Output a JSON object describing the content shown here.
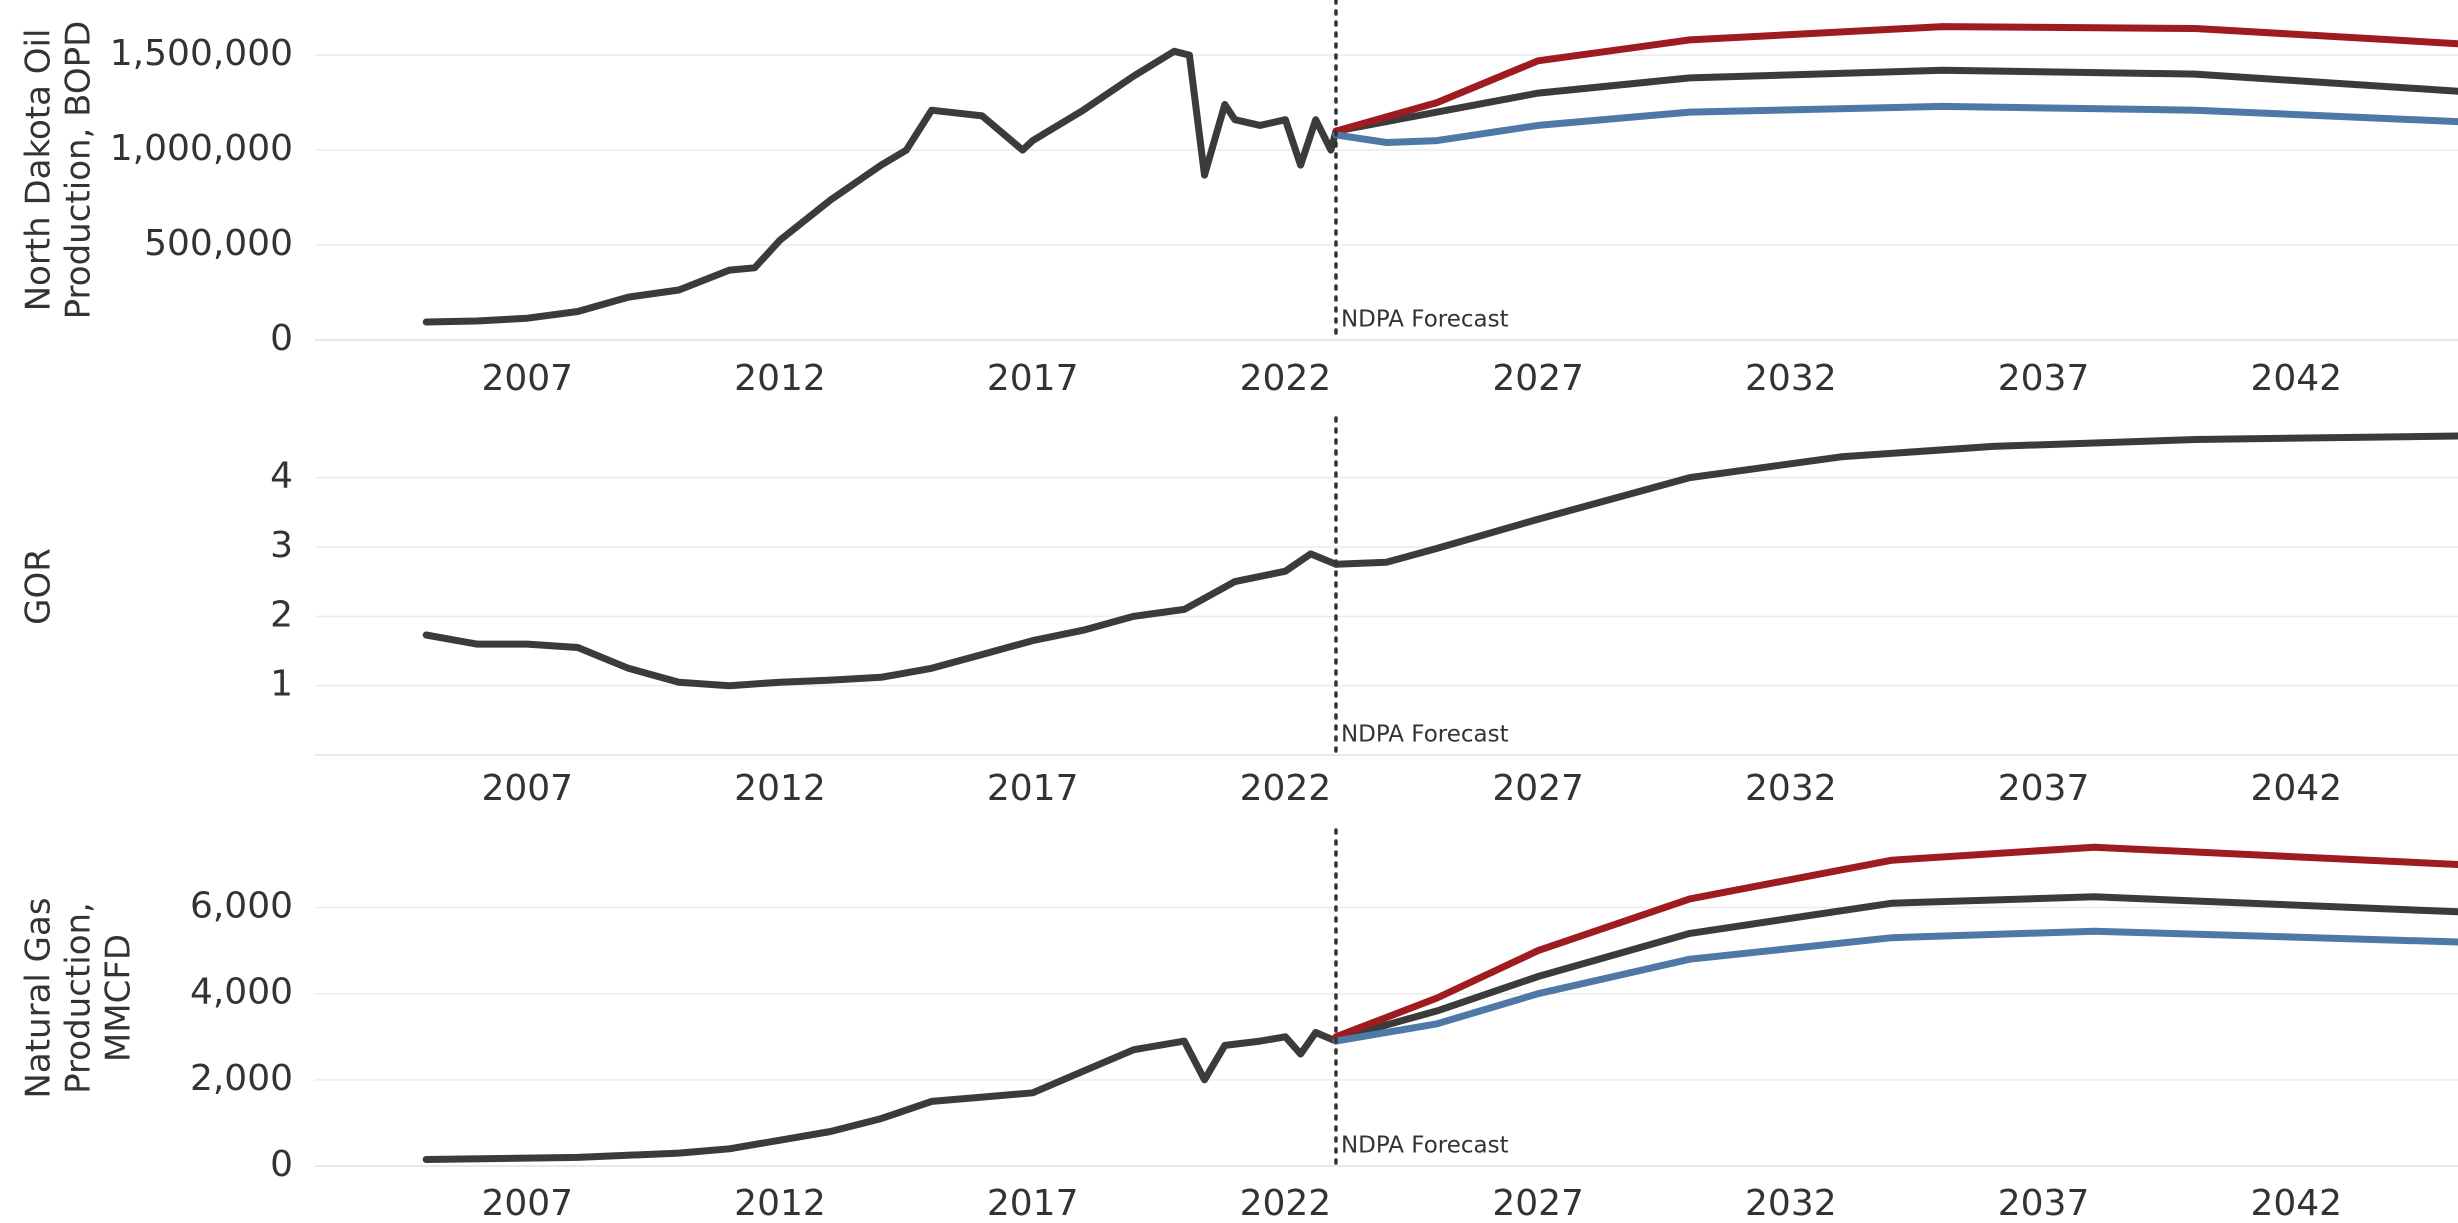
{
  "chart_data": [
    {
      "type": "line",
      "ylabel": [
        "North Dakota Oil",
        "Production, BOPD"
      ],
      "xlim": [
        2002.8,
        2045.2
      ],
      "xticks": [
        2007,
        2012,
        2017,
        2022,
        2027,
        2032,
        2037,
        2042
      ],
      "ylim": [
        0,
        1790000
      ],
      "yticks": [
        0,
        {
          "value": 500000,
          "label": "500,000"
        },
        {
          "value": 1000000,
          "label": "1,000,000"
        },
        {
          "value": 1500000,
          "label": "1,500,000"
        }
      ],
      "grid": true,
      "annotation": {
        "x": 2023,
        "text": "NDPA Forecast"
      },
      "series": [
        {
          "color": "#3b3b3b",
          "x": [
            2005,
            2006,
            2007,
            2008,
            2009,
            2010,
            2011,
            2011.5,
            2012,
            2013,
            2014,
            2014.5,
            2015,
            2016,
            2016.8,
            2017,
            2018,
            2019,
            2019.8,
            2020.1,
            2020.4,
            2020.8,
            2021,
            2021.5,
            2022,
            2022.3,
            2022.6,
            2022.9,
            2023
          ],
          "values": [
            95000,
            100000,
            115000,
            150000,
            226000,
            263000,
            368000,
            380000,
            526000,
            737000,
            921000,
            1000000,
            1210000,
            1180000,
            1000000,
            1050000,
            1210000,
            1390000,
            1520000,
            1500000,
            868000,
            1240000,
            1160000,
            1130000,
            1160000,
            921000,
            1160000,
            1000000,
            1100000
          ]
        },
        {
          "color": "#3b3b3b",
          "x": [
            2023,
            2025,
            2027,
            2030,
            2035,
            2040,
            2045.2
          ],
          "values": [
            1100000,
            1200000,
            1300000,
            1380000,
            1420000,
            1400000,
            1310000
          ]
        },
        {
          "color": "#9e1b20",
          "x": [
            2023,
            2025,
            2027,
            2030,
            2035,
            2040,
            2045.2
          ],
          "values": [
            1100000,
            1250000,
            1470000,
            1580000,
            1650000,
            1640000,
            1560000
          ]
        },
        {
          "color": "#4e79a7",
          "x": [
            2023,
            2024,
            2025,
            2027,
            2030,
            2035,
            2040,
            2045.2
          ],
          "values": [
            1080000,
            1040000,
            1050000,
            1130000,
            1200000,
            1230000,
            1210000,
            1150000
          ]
        }
      ]
    },
    {
      "type": "line",
      "ylabel": [
        "GOR"
      ],
      "xlim": [
        2002.8,
        2045.2
      ],
      "xticks": [
        2007,
        2012,
        2017,
        2022,
        2027,
        2032,
        2037,
        2042
      ],
      "ylim": [
        0,
        4.86
      ],
      "yticks": [
        1,
        2,
        3,
        4
      ],
      "grid": true,
      "annotation": {
        "x": 2023,
        "text": "NDPA Forecast"
      },
      "series": [
        {
          "color": "#3b3b3b",
          "x": [
            2005,
            2006,
            2007,
            2008,
            2009,
            2010,
            2011,
            2012,
            2013,
            2014,
            2015,
            2016,
            2017,
            2018,
            2019,
            2020,
            2021,
            2022,
            2022.5,
            2023
          ],
          "values": [
            1.73,
            1.6,
            1.6,
            1.55,
            1.25,
            1.05,
            1.0,
            1.05,
            1.08,
            1.12,
            1.25,
            1.45,
            1.65,
            1.8,
            2.0,
            2.1,
            2.5,
            2.65,
            2.9,
            2.75
          ]
        },
        {
          "color": "#3b3b3b",
          "x": [
            2023,
            2024,
            2025,
            2027,
            2030,
            2033,
            2036,
            2040,
            2045.2
          ],
          "values": [
            2.75,
            2.78,
            2.98,
            3.4,
            4.0,
            4.3,
            4.45,
            4.55,
            4.6
          ]
        }
      ]
    },
    {
      "type": "line",
      "ylabel": [
        "Natural Gas",
        "Production,",
        "MMCFD"
      ],
      "xlim": [
        2002.8,
        2045.2
      ],
      "xticks": [
        2007,
        2012,
        2017,
        2022,
        2027,
        2032,
        2037,
        2042
      ],
      "ylim": [
        0,
        7800
      ],
      "yticks": [
        0,
        {
          "value": 2000,
          "label": "2,000"
        },
        {
          "value": 4000,
          "label": "4,000"
        },
        {
          "value": 6000,
          "label": "6,000"
        }
      ],
      "grid": true,
      "annotation": {
        "x": 2023,
        "text": "NDPA Forecast"
      },
      "series": [
        {
          "color": "#3b3b3b",
          "x": [
            2005,
            2008,
            2010,
            2011,
            2012,
            2013,
            2014,
            2015,
            2016,
            2017,
            2018,
            2019,
            2020,
            2020.4,
            2020.8,
            2021.5,
            2022,
            2022.3,
            2022.6,
            2023
          ],
          "values": [
            150,
            200,
            300,
            400,
            600,
            800,
            1100,
            1500,
            1600,
            1700,
            2200,
            2700,
            2900,
            2000,
            2800,
            2900,
            3000,
            2600,
            3100,
            2900
          ]
        },
        {
          "color": "#3b3b3b",
          "x": [
            2023,
            2025,
            2027,
            2030,
            2034,
            2038,
            2045.2
          ],
          "values": [
            2950,
            3600,
            4400,
            5400,
            6100,
            6250,
            5900
          ]
        },
        {
          "color": "#9e1b20",
          "x": [
            2023,
            2025,
            2027,
            2030,
            2034,
            2038,
            2045.2
          ],
          "values": [
            3000,
            3900,
            5000,
            6200,
            7100,
            7400,
            7000
          ]
        },
        {
          "color": "#4e79a7",
          "x": [
            2023,
            2025,
            2027,
            2030,
            2034,
            2038,
            2045.2
          ],
          "values": [
            2900,
            3300,
            4000,
            4800,
            5300,
            5450,
            5200
          ]
        }
      ]
    }
  ]
}
